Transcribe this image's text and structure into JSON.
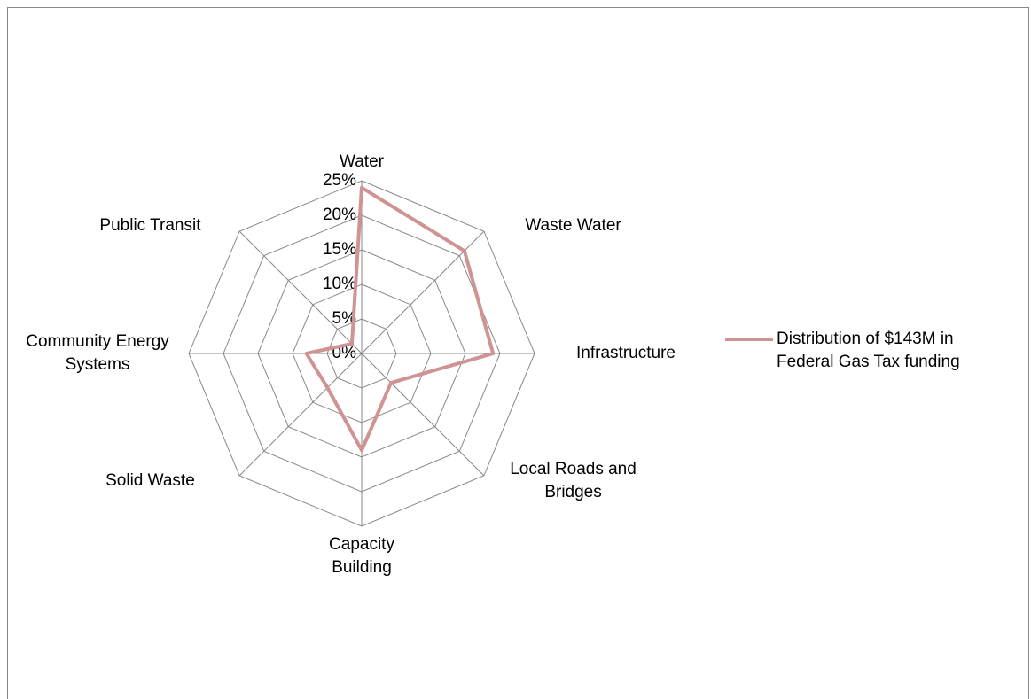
{
  "chart_data": {
    "type": "radar",
    "categories": [
      "Water",
      "Waste Water",
      "Infrastructure",
      "Local Roads and Bridges",
      "Capacity Building",
      "Solid Waste",
      "Community Energy Systems",
      "Public Transit"
    ],
    "series": [
      {
        "name": "Distribution of $143M in Federal Gas Tax funding",
        "color": "#d09393",
        "values": [
          24,
          21,
          19,
          6,
          14,
          7,
          8,
          2
        ]
      }
    ],
    "rlim": [
      0,
      25
    ],
    "rticks": [
      {
        "value": 0,
        "label": "0%"
      },
      {
        "value": 5,
        "label": "5%"
      },
      {
        "value": 10,
        "label": "10%"
      },
      {
        "value": 15,
        "label": "15%"
      },
      {
        "value": 20,
        "label": "20%"
      },
      {
        "value": 25,
        "label": "25%"
      }
    ],
    "grid": true,
    "legend": "right"
  }
}
